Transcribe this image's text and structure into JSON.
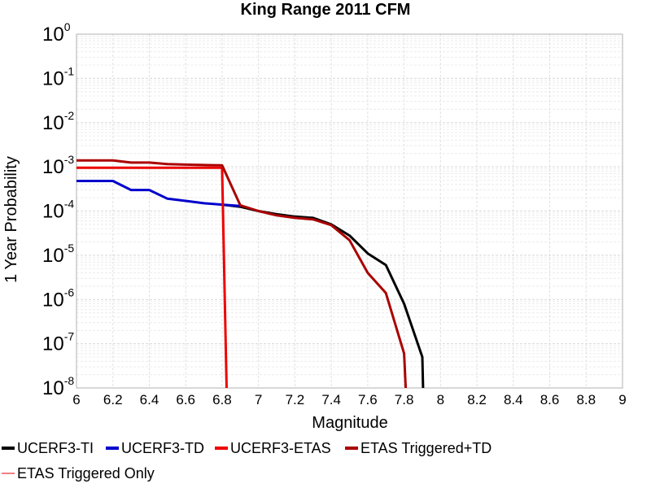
{
  "chart_data": {
    "type": "line",
    "title": "King Range 2011 CFM",
    "xlabel": "Magnitude",
    "ylabel": "1 Year Probability",
    "xlim": [
      6,
      9
    ],
    "ylim": [
      1e-08,
      1
    ],
    "yscale": "log",
    "grid": true,
    "legend_position": "bottom",
    "x_ticks": [
      "6",
      "6.2",
      "6.4",
      "6.6",
      "6.8",
      "7",
      "7.2",
      "7.4",
      "7.6",
      "7.8",
      "8",
      "8.2",
      "8.4",
      "8.6",
      "8.8",
      "9"
    ],
    "y_ticks": [
      {
        "base": "10",
        "exp": "0",
        "value": 1
      },
      {
        "base": "10",
        "exp": "-1",
        "value": 0.1
      },
      {
        "base": "10",
        "exp": "-2",
        "value": 0.01
      },
      {
        "base": "10",
        "exp": "-3",
        "value": 0.001
      },
      {
        "base": "10",
        "exp": "-4",
        "value": 0.0001
      },
      {
        "base": "10",
        "exp": "-5",
        "value": 1e-05
      },
      {
        "base": "10",
        "exp": "-6",
        "value": 1e-06
      },
      {
        "base": "10",
        "exp": "-7",
        "value": 1e-07
      },
      {
        "base": "10",
        "exp": "-8",
        "value": 1e-08
      }
    ],
    "series": [
      {
        "name": "UCERF3-TI",
        "color": "#000000",
        "width": 3,
        "x": [
          6.8,
          6.9,
          7.0,
          7.1,
          7.2,
          7.3,
          7.4,
          7.5,
          7.6,
          7.7,
          7.8,
          7.9,
          7.91
        ],
        "y": [
          0.00014,
          0.000125,
          0.0001,
          8.5e-05,
          7.5e-05,
          7e-05,
          5e-05,
          2.8e-05,
          1.1e-05,
          6e-06,
          8e-07,
          5e-08,
          1e-09
        ]
      },
      {
        "name": "UCERF3-TD",
        "color": "#0000cc",
        "width": 3,
        "x": [
          6.0,
          6.1,
          6.2,
          6.3,
          6.4,
          6.5,
          6.6,
          6.7,
          6.8,
          6.9
        ],
        "y": [
          0.00048,
          0.00048,
          0.00048,
          0.0003,
          0.0003,
          0.00019,
          0.00017,
          0.00015,
          0.00014,
          0.00013
        ]
      },
      {
        "name": "UCERF3-ETAS",
        "color": "#ee0000",
        "width": 3,
        "x": [
          6.0,
          6.1,
          6.2,
          6.3,
          6.4,
          6.5,
          6.6,
          6.7,
          6.8,
          6.83
        ],
        "y": [
          0.00095,
          0.00095,
          0.00095,
          0.00095,
          0.00095,
          0.00095,
          0.00095,
          0.00095,
          0.00095,
          1e-09
        ]
      },
      {
        "name": "ETAS Triggered+TD",
        "color": "#aa0000",
        "width": 3,
        "x": [
          6.0,
          6.1,
          6.2,
          6.3,
          6.4,
          6.5,
          6.6,
          6.7,
          6.8,
          6.9,
          7.0,
          7.1,
          7.2,
          7.3,
          7.4,
          7.5,
          7.6,
          7.7,
          7.8,
          7.82
        ],
        "y": [
          0.0014,
          0.0014,
          0.0014,
          0.00125,
          0.00125,
          0.00115,
          0.00112,
          0.0011,
          0.00108,
          0.000135,
          0.0001,
          8e-05,
          7e-05,
          6.5e-05,
          4.8e-05,
          2.2e-05,
          4e-06,
          1.4e-06,
          6e-08,
          1e-09
        ]
      },
      {
        "name": "ETAS Triggered Only",
        "color": "#f08080",
        "width": 1.5,
        "x": [],
        "y": []
      }
    ]
  }
}
